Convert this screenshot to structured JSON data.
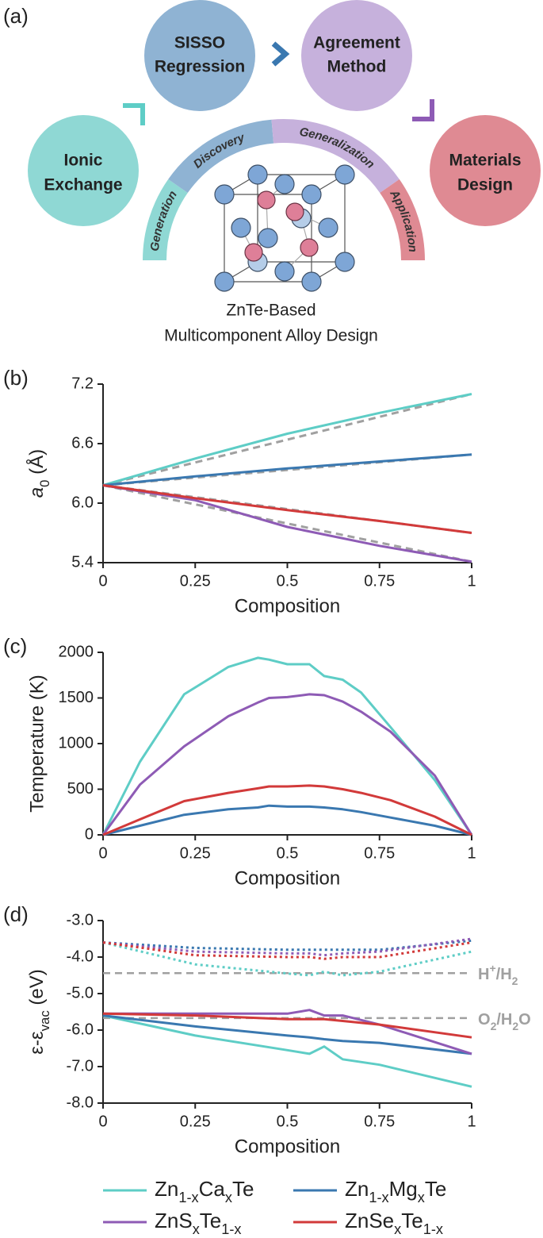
{
  "diagram": {
    "panel_label": "(a)",
    "circles": [
      [
        "Ionic",
        "Exchange"
      ],
      [
        "SISSO",
        "Regression"
      ],
      [
        "Agreement",
        "Method"
      ],
      [
        "Materials",
        "Design"
      ]
    ],
    "arc_labels": [
      "Generation",
      "Discovery",
      "Generalization",
      "Application"
    ],
    "caption": [
      "ZnTe-Based",
      "Multicomponent Alloy Design"
    ]
  },
  "chart_data": [
    {
      "type": "line",
      "panel_label": "(b)",
      "xlabel": "Composition",
      "ylabel": [
        [
          "a",
          "italic"
        ],
        [
          "0",
          "sub"
        ],
        [
          " (Å)",
          "normal"
        ]
      ],
      "x": [
        0,
        0.25,
        0.5,
        0.75,
        1
      ],
      "xlim": [
        0,
        1
      ],
      "xticks": [
        0,
        0.25,
        0.5,
        0.75,
        1
      ],
      "ylim": [
        5.4,
        7.2
      ],
      "yticks": [
        5.4,
        {
          "value": 6,
          "label": "6.0"
        },
        6.6,
        7.2
      ],
      "series": [
        {
          "color": "#5ecdc6",
          "values": [
            6.18,
            6.45,
            6.7,
            6.91,
            7.1
          ]
        },
        {
          "color": "#3a78b0",
          "values": [
            6.18,
            6.27,
            6.35,
            6.42,
            6.49
          ]
        },
        {
          "color": "#8e5bb5",
          "values": [
            6.18,
            6.03,
            5.76,
            5.57,
            5.41
          ]
        },
        {
          "color": "#d23a3a",
          "values": [
            6.18,
            6.05,
            5.93,
            5.82,
            5.7
          ]
        }
      ],
      "reference_lines": {
        "color": "#a0a0a0",
        "x": [
          0,
          1
        ],
        "values": [
          [
            6.18,
            7.1
          ],
          [
            6.18,
            6.49
          ],
          [
            6.18,
            5.41
          ],
          [
            6.18,
            5.7
          ]
        ]
      }
    },
    {
      "type": "line",
      "panel_label": "(c)",
      "xlabel": "Composition",
      "ylabel": "Temperature (K)",
      "x": [
        0,
        0.1,
        0.22,
        0.34,
        0.42,
        0.45,
        0.5,
        0.56,
        0.6,
        0.65,
        0.7,
        0.78,
        0.9,
        1
      ],
      "xlim": [
        0,
        1
      ],
      "xticks": [
        0,
        0.25,
        0.5,
        0.75,
        1
      ],
      "ylim": [
        0,
        2000
      ],
      "yticks": [
        0,
        500,
        1000,
        1500,
        2000
      ],
      "series": [
        {
          "color": "#5ecdc6",
          "values": [
            0,
            800,
            1540,
            1840,
            1940,
            1920,
            1870,
            1870,
            1740,
            1700,
            1560,
            1180,
            600,
            0
          ]
        },
        {
          "color": "#3a78b0",
          "values": [
            0,
            100,
            220,
            280,
            300,
            320,
            310,
            310,
            300,
            280,
            250,
            190,
            100,
            0
          ]
        },
        {
          "color": "#8e5bb5",
          "values": [
            0,
            550,
            970,
            1300,
            1450,
            1500,
            1510,
            1540,
            1530,
            1460,
            1350,
            1130,
            650,
            0
          ]
        },
        {
          "color": "#d23a3a",
          "values": [
            0,
            170,
            370,
            460,
            510,
            530,
            530,
            540,
            530,
            500,
            460,
            380,
            200,
            0
          ]
        }
      ]
    },
    {
      "type": "line",
      "panel_label": "(d)",
      "xlabel": "Composition",
      "ylabel": [
        [
          "ε-ε",
          "normal"
        ],
        [
          "vac",
          "sub"
        ],
        [
          " (eV)",
          "normal"
        ]
      ],
      "x": [
        0,
        0.25,
        0.5,
        0.56,
        0.6,
        0.65,
        0.75,
        1
      ],
      "xlim": [
        0,
        1
      ],
      "xticks": [
        0,
        0.25,
        0.5,
        0.75,
        1
      ],
      "ylim": [
        -8,
        -3
      ],
      "yticks": [
        {
          "value": -3,
          "label": "-3.0"
        },
        {
          "value": -4,
          "label": "-4.0"
        },
        {
          "value": -5,
          "label": "-5.0"
        },
        {
          "value": -6,
          "label": "-6.0"
        },
        {
          "value": -7,
          "label": "-7.0"
        },
        {
          "value": -8,
          "label": "-8.0"
        }
      ],
      "series": [
        {
          "name": [
            [
              "Zn",
              "normal"
            ],
            [
              "1-x",
              "sub"
            ],
            [
              "Ca",
              "normal"
            ],
            [
              "x",
              "sub"
            ],
            [
              "Te",
              "normal"
            ]
          ],
          "color": "#5ecdc6",
          "values": [
            -5.6,
            -6.15,
            -6.55,
            -6.65,
            -6.45,
            -6.8,
            -6.95,
            -7.55
          ],
          "dotted_values": [
            -3.6,
            -4.2,
            -4.45,
            -4.5,
            -4.4,
            -4.5,
            -4.4,
            -3.85
          ]
        },
        {
          "name": [
            [
              "Zn",
              "normal"
            ],
            [
              "1-x",
              "sub"
            ],
            [
              "Mg",
              "normal"
            ],
            [
              "x",
              "sub"
            ],
            [
              "Te",
              "normal"
            ]
          ],
          "color": "#3a78b0",
          "values": [
            -5.6,
            -5.9,
            -6.15,
            -6.2,
            -6.25,
            -6.3,
            -6.35,
            -6.65
          ],
          "dotted_values": [
            -3.6,
            -3.75,
            -3.8,
            -3.8,
            -3.8,
            -3.8,
            -3.8,
            -3.55
          ]
        },
        {
          "name": [
            [
              "ZnS",
              "normal"
            ],
            [
              "x",
              "sub"
            ],
            [
              "Te",
              "normal"
            ],
            [
              "1-x",
              "sub"
            ]
          ],
          "color": "#8e5bb5",
          "values": [
            -5.55,
            -5.55,
            -5.55,
            -5.45,
            -5.6,
            -5.6,
            -5.85,
            -6.65
          ],
          "dotted_values": [
            -3.6,
            -3.85,
            -3.9,
            -3.9,
            -3.95,
            -3.9,
            -3.85,
            -3.5
          ]
        },
        {
          "name": [
            [
              "ZnSe",
              "normal"
            ],
            [
              "x",
              "sub"
            ],
            [
              "Te",
              "normal"
            ],
            [
              "1-x",
              "sub"
            ]
          ],
          "color": "#d23a3a",
          "values": [
            -5.55,
            -5.6,
            -5.7,
            -5.7,
            -5.7,
            -5.75,
            -5.85,
            -6.2
          ],
          "dotted_values": [
            -3.6,
            -3.95,
            -4.0,
            -4.0,
            -4.05,
            -4.0,
            -4.0,
            -3.6
          ]
        }
      ],
      "annotations": [
        {
          "value": -4.44,
          "color": "#a0a0a0",
          "text": [
            [
              "H",
              "normal"
            ],
            [
              "+",
              "sup"
            ],
            [
              "/H",
              "normal"
            ],
            [
              "2",
              "sub"
            ]
          ]
        },
        {
          "value": -5.67,
          "color": "#a0a0a0",
          "text": [
            [
              "O",
              "normal"
            ],
            [
              "2",
              "sub"
            ],
            [
              "/H",
              "normal"
            ],
            [
              "2",
              "sub"
            ],
            [
              "O",
              "normal"
            ]
          ]
        }
      ]
    }
  ]
}
